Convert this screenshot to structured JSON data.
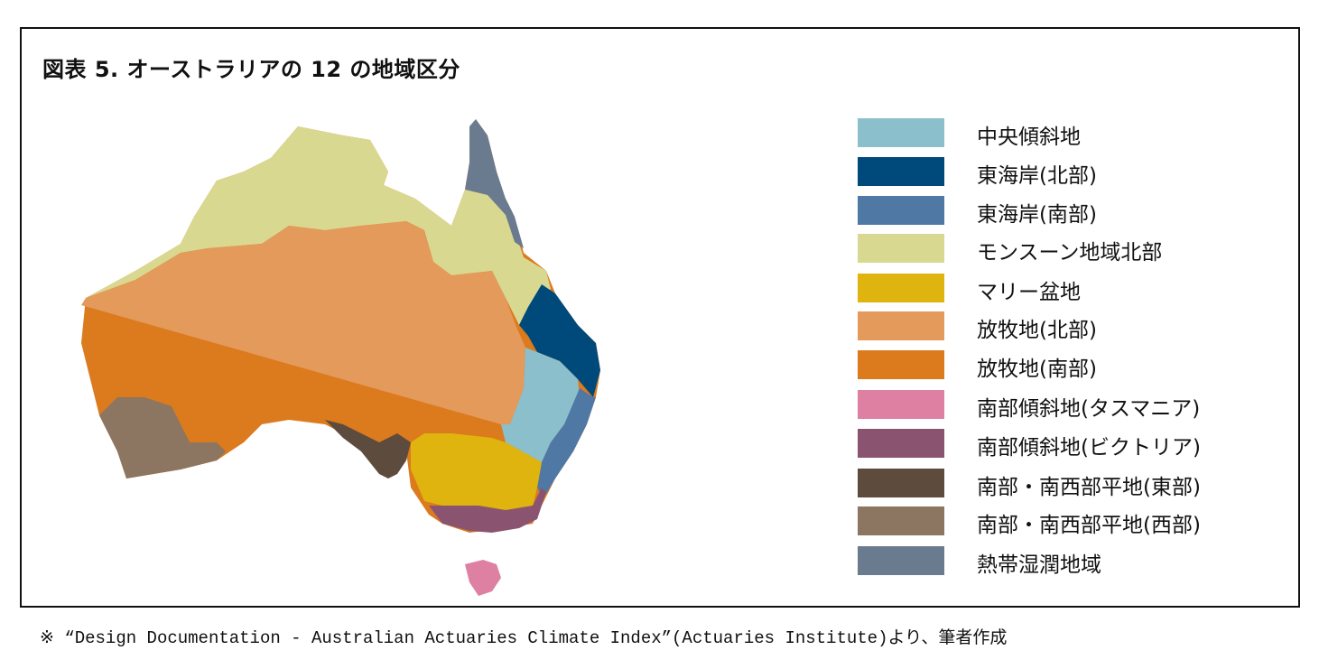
{
  "title": "図表 5. オーストラリアの 12 の地域区分",
  "legend": [
    {
      "label": "中央傾斜地",
      "color": "#8bbfcc"
    },
    {
      "label": "東海岸(北部)",
      "color": "#004a7b"
    },
    {
      "label": "東海岸(南部)",
      "color": "#5078a4"
    },
    {
      "label": "モンスーン地域北部",
      "color": "#d9d891"
    },
    {
      "label": "マリー盆地",
      "color": "#e0b40e"
    },
    {
      "label": "放牧地(北部)",
      "color": "#e39a5a"
    },
    {
      "label": "放牧地(南部)",
      "color": "#dc7a1e"
    },
    {
      "label": "南部傾斜地(タスマニア)",
      "color": "#dd80a2"
    },
    {
      "label": "南部傾斜地(ビクトリア)",
      "color": "#8a5470"
    },
    {
      "label": "南部・南西部平地(東部)",
      "color": "#5d4b3d"
    },
    {
      "label": "南部・南西部平地(西部)",
      "color": "#8c7561"
    },
    {
      "label": "熱帯湿潤地域",
      "color": "#6a7b90"
    }
  ],
  "note": "※ “Design Documentation - Australian Actuaries Climate Index”(Actuaries Institute)より、筆者作成"
}
